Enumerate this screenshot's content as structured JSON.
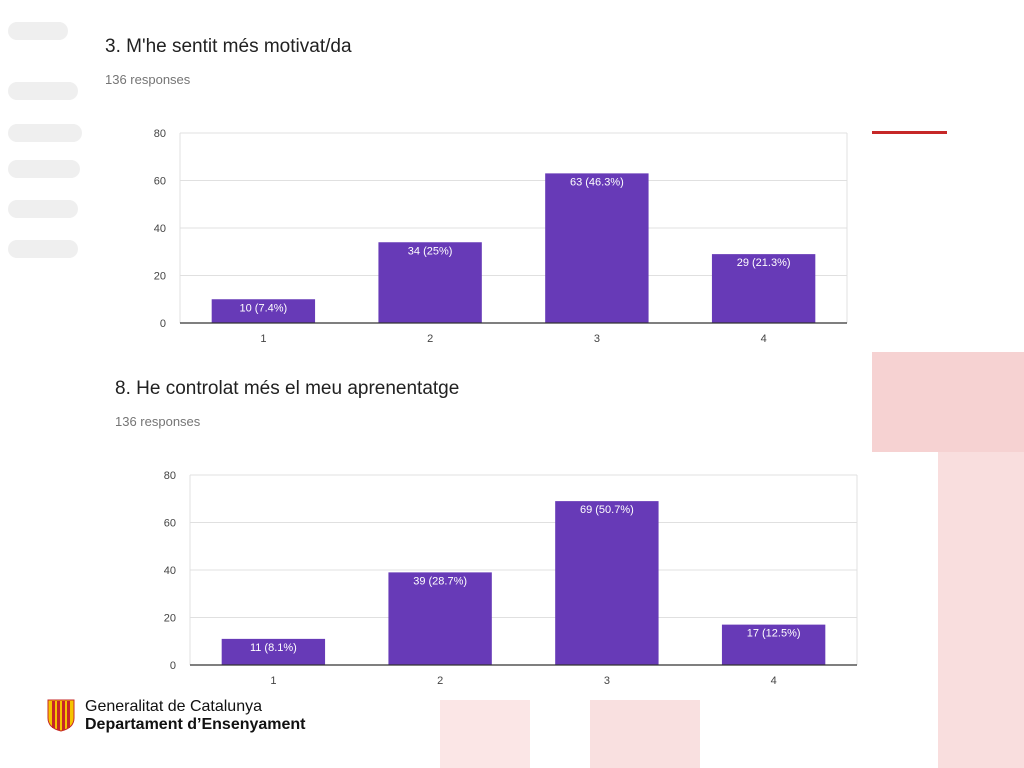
{
  "colors": {
    "bar": "#673ab7",
    "grid": "#e0e0e0",
    "axis": "#333333",
    "tick_text": "#444444",
    "brand_red": "#c62828"
  },
  "chart_data": [
    {
      "type": "bar",
      "title": "3. M'he sentit més motivat/da",
      "subtitle": "136 responses",
      "categories": [
        "1",
        "2",
        "3",
        "4"
      ],
      "values": [
        10,
        34,
        63,
        29
      ],
      "data_labels": [
        "10 (7.4%)",
        "34 (25%)",
        "63 (46.3%)",
        "29 (21.3%)"
      ],
      "ylim": [
        0,
        80
      ],
      "yticks": [
        0,
        20,
        40,
        60,
        80
      ],
      "xlabel": "",
      "ylabel": "",
      "grid": true,
      "legend": "none"
    },
    {
      "type": "bar",
      "title": "8. He controlat més el meu aprenentatge",
      "subtitle": "136 responses",
      "categories": [
        "1",
        "2",
        "3",
        "4"
      ],
      "values": [
        11,
        39,
        69,
        17
      ],
      "data_labels": [
        "11 (8.1%)",
        "39 (28.7%)",
        "69 (50.7%)",
        "17 (12.5%)"
      ],
      "ylim": [
        0,
        80
      ],
      "yticks": [
        0,
        20,
        40,
        60,
        80
      ],
      "xlabel": "",
      "ylabel": "",
      "grid": true,
      "legend": "none"
    }
  ],
  "footer": {
    "line1": "Generalitat de Catalunya",
    "line2": "Departament d’Ensenyament",
    "logo_icon": "senyera-icon"
  }
}
